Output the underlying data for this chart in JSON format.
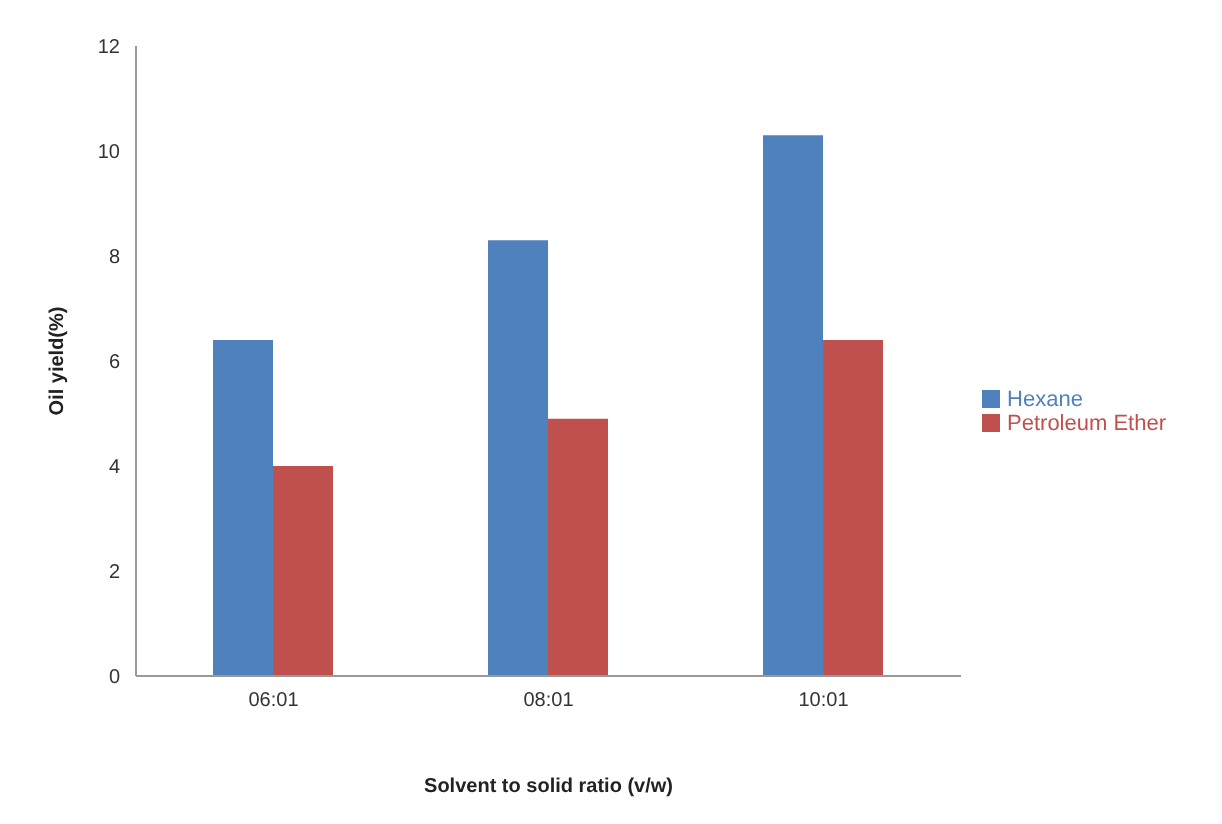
{
  "chart_data": {
    "type": "bar",
    "xlabel": "Solvent to solid ratio (v/w)",
    "ylabel": "Oil yield(%)",
    "categories": [
      "06:01",
      "08:01",
      "10:01"
    ],
    "series": [
      {
        "name": "Hexane",
        "color": "#4f81bd",
        "values": [
          6.4,
          8.3,
          10.3
        ]
      },
      {
        "name": "Petroleum Ether",
        "color": "#c0504d",
        "values": [
          4.0,
          4.9,
          6.4
        ]
      }
    ],
    "ylim": [
      0,
      12
    ],
    "yticks": [
      0,
      2,
      4,
      6,
      8,
      10,
      12
    ],
    "grid": false,
    "legend": "right"
  }
}
